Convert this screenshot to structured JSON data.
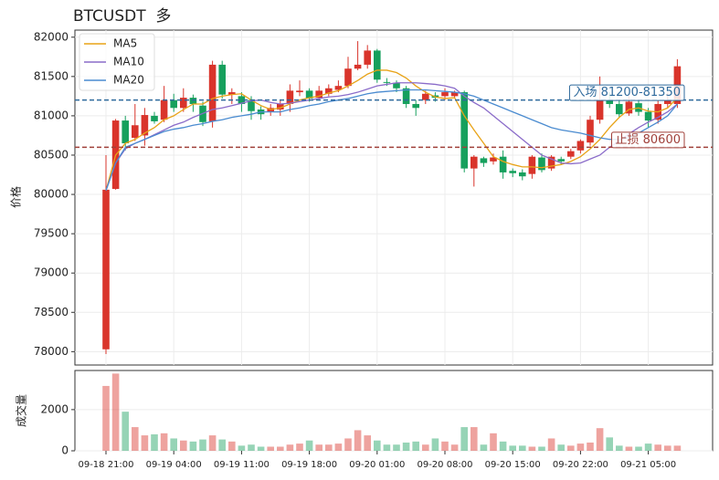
{
  "chart_data": {
    "type": "candlestick",
    "title": "BTCUSDT  多",
    "ylabel": "价格",
    "categories": [
      "09-18 21:00",
      null,
      null,
      null,
      null,
      null,
      null,
      "09-19 04:00",
      null,
      null,
      null,
      null,
      null,
      null,
      "09-19 11:00",
      null,
      null,
      null,
      null,
      null,
      null,
      "09-19 18:00",
      null,
      null,
      null,
      null,
      null,
      null,
      "09-20 01:00",
      null,
      null,
      null,
      null,
      null,
      null,
      "09-20 08:00",
      null,
      null,
      null,
      null,
      null,
      null,
      "09-20 15:00",
      null,
      null,
      null,
      null,
      null,
      null,
      "09-20 22:00",
      null,
      null,
      null,
      null,
      null,
      null,
      "09-21 05:00",
      null,
      null,
      null
    ],
    "open": [
      78030,
      80070,
      80940,
      80720,
      80750,
      81000,
      80950,
      81200,
      81100,
      81230,
      81130,
      80930,
      81650,
      81270,
      81250,
      81200,
      81080,
      81050,
      81080,
      81150,
      81300,
      81320,
      81230,
      81280,
      81330,
      81380,
      81600,
      81650,
      81830,
      81430,
      81420,
      81350,
      81150,
      81200,
      81260,
      81250,
      81250,
      81300,
      80330,
      80460,
      80420,
      80480,
      80300,
      80280,
      80260,
      80470,
      80330,
      80450,
      80480,
      80560,
      80660,
      80950,
      81200,
      81150,
      81030,
      81160,
      81050,
      80950,
      81150,
      81150
    ],
    "high": [
      80500,
      80960,
      81000,
      81150,
      81100,
      81050,
      81380,
      81280,
      81350,
      81270,
      81180,
      81700,
      81700,
      81350,
      81300,
      81250,
      81120,
      81150,
      81200,
      81400,
      81450,
      81350,
      81380,
      81400,
      81450,
      81750,
      81950,
      81900,
      81850,
      81480,
      81450,
      81380,
      81200,
      81320,
      81300,
      81350,
      81320,
      81320,
      80500,
      80480,
      80520,
      80560,
      80330,
      80320,
      80500,
      80520,
      80500,
      80480,
      80580,
      80700,
      81000,
      81500,
      81300,
      81200,
      81250,
      81200,
      81100,
      81200,
      81300,
      81720
    ],
    "low": [
      77970,
      80060,
      80560,
      80680,
      80620,
      80900,
      80920,
      81050,
      81050,
      81050,
      80870,
      80850,
      81220,
      81150,
      81050,
      80950,
      80950,
      81000,
      81000,
      81050,
      81250,
      81180,
      81200,
      81250,
      81300,
      81350,
      81580,
      81600,
      81420,
      81380,
      81300,
      81100,
      81000,
      81150,
      81180,
      81200,
      81220,
      80280,
      80100,
      80350,
      80380,
      80200,
      80220,
      80180,
      80200,
      80280,
      80300,
      80380,
      80450,
      80520,
      80620,
      80900,
      81100,
      80980,
      81000,
      81000,
      80850,
      80900,
      81100,
      81100
    ],
    "close": [
      80060,
      80940,
      80650,
      80880,
      81010,
      80930,
      81200,
      81100,
      81230,
      81150,
      80920,
      81650,
      81270,
      81300,
      81150,
      81060,
      81020,
      81100,
      81150,
      81320,
      81320,
      81220,
      81320,
      81350,
      81380,
      81600,
      81650,
      81830,
      81460,
      81420,
      81350,
      81150,
      81100,
      81280,
      81230,
      81300,
      81300,
      80330,
      80480,
      80400,
      80470,
      80280,
      80270,
      80230,
      80480,
      80310,
      80480,
      80420,
      80550,
      80680,
      80950,
      81200,
      81150,
      81020,
      81180,
      81050,
      80940,
      81150,
      81200,
      81630
    ],
    "up_color": "#d9342b",
    "down_color": "#16a05d",
    "ylim": [
      77830,
      82090
    ],
    "yticks": [
      78000,
      78500,
      79000,
      79500,
      80000,
      80500,
      81000,
      81500,
      82000
    ],
    "grid": true,
    "legend": "upper left",
    "series": [
      {
        "name": "MA5",
        "color": "#e8a317",
        "values": [
          80050,
          80500,
          80650,
          80700,
          80780,
          80850,
          80950,
          81000,
          81080,
          81150,
          81150,
          81220,
          81250,
          81270,
          81280,
          81200,
          81130,
          81080,
          81100,
          81150,
          81200,
          81230,
          81250,
          81290,
          81320,
          81380,
          81450,
          81530,
          81580,
          81580,
          81550,
          81480,
          81380,
          81300,
          81240,
          81220,
          81230,
          81000,
          80820,
          80650,
          80480,
          80420,
          80380,
          80350,
          80350,
          80340,
          80360,
          80380,
          80420,
          80480,
          80580,
          80700,
          80850,
          80980,
          81080,
          81100,
          81060,
          81050,
          81100,
          81230
        ]
      },
      {
        "name": "MA10",
        "color": "#8a6bc9",
        "values": [
          80050,
          80400,
          80580,
          80650,
          80700,
          80760,
          80820,
          80880,
          80920,
          80980,
          81030,
          81080,
          81100,
          81130,
          81160,
          81190,
          81200,
          81170,
          81150,
          81160,
          81180,
          81200,
          81220,
          81240,
          81250,
          81270,
          81300,
          81340,
          81380,
          81400,
          81420,
          81420,
          81420,
          81410,
          81400,
          81380,
          81350,
          81250,
          81170,
          81100,
          81000,
          80900,
          80800,
          80700,
          80600,
          80500,
          80450,
          80400,
          80390,
          80400,
          80450,
          80500,
          80600,
          80680,
          80770,
          80850,
          80920,
          80980,
          81050,
          81150
        ]
      },
      {
        "name": "MA20",
        "color": "#4a8bd0",
        "values": [
          80050,
          80400,
          80600,
          80650,
          80700,
          80750,
          80800,
          80830,
          80850,
          80880,
          80900,
          80930,
          80950,
          80980,
          81000,
          81020,
          81050,
          81050,
          81050,
          81080,
          81100,
          81130,
          81150,
          81180,
          81200,
          81220,
          81250,
          81280,
          81300,
          81310,
          81320,
          81330,
          81330,
          81330,
          81320,
          81310,
          81300,
          81280,
          81250,
          81200,
          81150,
          81100,
          81050,
          81000,
          80950,
          80900,
          80850,
          80820,
          80800,
          80780,
          80750,
          80720,
          80700,
          80700,
          80720,
          80780,
          80850,
          80920,
          81000,
          81150
        ]
      }
    ],
    "hlines": [
      {
        "value": 81200,
        "label": "入场 81200-81350",
        "color": "#2f6a9c"
      },
      {
        "value": 80600,
        "label": "止损 80600",
        "color": "#a0403a"
      }
    ],
    "volume": {
      "ylabel": "成交量",
      "values": [
        3150,
        3750,
        1900,
        1150,
        750,
        800,
        850,
        600,
        500,
        450,
        550,
        750,
        550,
        450,
        250,
        300,
        200,
        200,
        200,
        300,
        350,
        500,
        300,
        300,
        350,
        600,
        1000,
        750,
        500,
        300,
        300,
        400,
        450,
        300,
        600,
        450,
        300,
        1150,
        1150,
        300,
        850,
        450,
        250,
        250,
        200,
        200,
        600,
        300,
        250,
        350,
        400,
        1100,
        650,
        250,
        200,
        200,
        350,
        300,
        250,
        250
      ],
      "ylim": [
        0,
        3900
      ],
      "yticks": [
        0,
        2000
      ]
    }
  }
}
